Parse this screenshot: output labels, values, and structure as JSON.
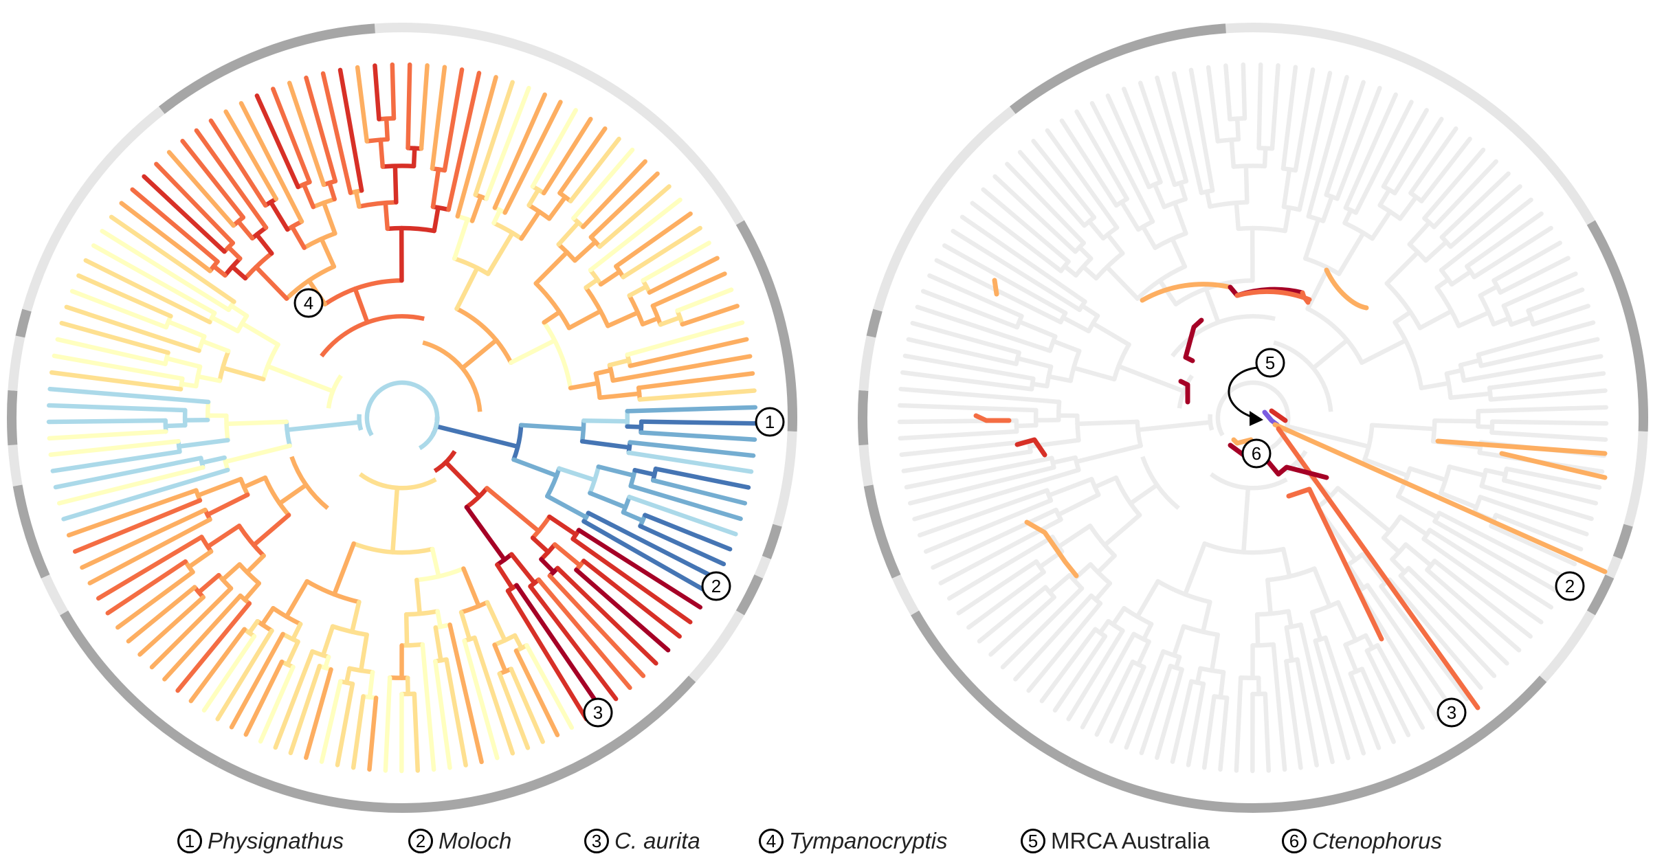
{
  "colors": {
    "ring_dark": "#a6a6a6",
    "ring_light": "#e6e6e6",
    "faded_branch": "#ececec",
    "deep_red": "#a50026",
    "red": "#d73027",
    "orange": "#f46d43",
    "light_orange": "#fdae61",
    "yellow": "#fee090",
    "pale_yellow": "#ffffbf",
    "light_blue": "#abd9e9",
    "mid_blue": "#74add1",
    "dark_blue": "#4575b4",
    "purple": "#7b5ce0"
  },
  "left_panel": {
    "markers": [
      {
        "id": "m1",
        "number": "1"
      },
      {
        "id": "m2",
        "number": "2"
      },
      {
        "id": "m3",
        "number": "3"
      },
      {
        "id": "m4",
        "number": "4"
      }
    ]
  },
  "right_panel": {
    "markers": [
      {
        "id": "m2",
        "number": "2"
      },
      {
        "id": "m3",
        "number": "3"
      },
      {
        "id": "m5",
        "number": "5"
      },
      {
        "id": "m6",
        "number": "6"
      }
    ]
  },
  "legend": [
    {
      "number": "1",
      "label": "Physignathus",
      "italic": true
    },
    {
      "number": "2",
      "label": "Moloch",
      "italic": true
    },
    {
      "number": "3",
      "label": "C. aurita",
      "italic": true
    },
    {
      "number": "4",
      "label": "Tympanocryptis",
      "italic": true
    },
    {
      "number": "5",
      "label": "MRCA Australia",
      "italic": false
    },
    {
      "number": "6",
      "label": "Ctenophorus",
      "italic": true
    }
  ]
}
